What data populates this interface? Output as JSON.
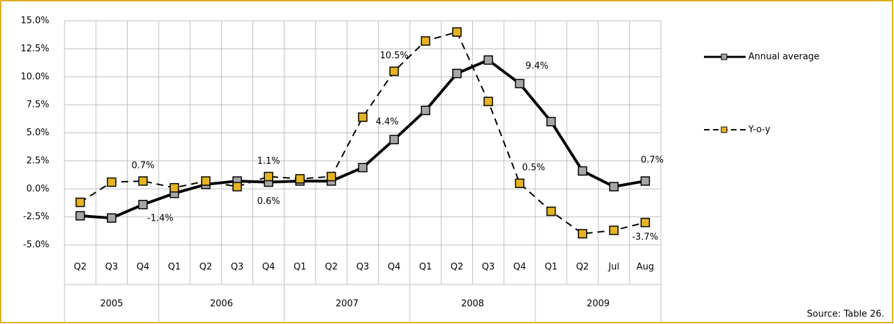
{
  "chart_data": {
    "type": "line",
    "groups": [
      {
        "name": "2005",
        "categories": [
          "Q2",
          "Q3",
          "Q4"
        ]
      },
      {
        "name": "2006",
        "categories": [
          "Q1",
          "Q2",
          "Q3",
          "Q4"
        ]
      },
      {
        "name": "2007",
        "categories": [
          "Q1",
          "Q2",
          "Q3",
          "Q4"
        ]
      },
      {
        "name": "2008",
        "categories": [
          "Q1",
          "Q2",
          "Q3",
          "Q4"
        ]
      },
      {
        "name": "2009",
        "categories": [
          "Q1",
          "Q2",
          "Jul",
          "Aug"
        ]
      }
    ],
    "series": [
      {
        "name": "Annual average",
        "color": "#a6a6a6",
        "dash": false,
        "values": [
          -2.4,
          -2.6,
          -1.4,
          -0.4,
          0.4,
          0.7,
          0.6,
          0.7,
          0.7,
          1.9,
          4.4,
          7.0,
          10.3,
          11.5,
          9.4,
          6.0,
          1.6,
          0.2,
          0.7
        ],
        "value_labels": [
          null,
          null,
          "-1.4%",
          null,
          null,
          null,
          "0.6%",
          null,
          null,
          null,
          "4.4%",
          null,
          null,
          null,
          "9.4%",
          null,
          null,
          null,
          "0.7%"
        ]
      },
      {
        "name": "Y-o-y",
        "color": "#e6b422",
        "dash": true,
        "values": [
          -1.2,
          0.6,
          0.7,
          0.1,
          0.7,
          0.2,
          1.1,
          0.9,
          1.1,
          6.4,
          10.5,
          13.2,
          14.0,
          7.8,
          0.5,
          -2.0,
          -4.0,
          -3.7,
          -3.0
        ],
        "value_labels": [
          null,
          null,
          "0.7%",
          null,
          null,
          null,
          "1.1%",
          null,
          null,
          null,
          "10.5%",
          null,
          null,
          null,
          "0.5%",
          null,
          null,
          "-3.7%",
          null
        ]
      }
    ],
    "ylim": [
      -5,
      15
    ],
    "yticks": [
      {
        "value": -5,
        "label": "-5.0%"
      },
      {
        "value": -2.5,
        "label": "-2.5%"
      },
      {
        "value": 0,
        "label": "0.0%"
      },
      {
        "value": 2.5,
        "label": "2.5%"
      },
      {
        "value": 5,
        "label": "5.0%"
      },
      {
        "value": 7.5,
        "label": "7.5%"
      },
      {
        "value": 10,
        "label": "10.0%"
      },
      {
        "value": 12.5,
        "label": "12.5%"
      },
      {
        "value": 15,
        "label": "15.0%"
      }
    ],
    "grid": true,
    "source": "Source: Table 26."
  }
}
